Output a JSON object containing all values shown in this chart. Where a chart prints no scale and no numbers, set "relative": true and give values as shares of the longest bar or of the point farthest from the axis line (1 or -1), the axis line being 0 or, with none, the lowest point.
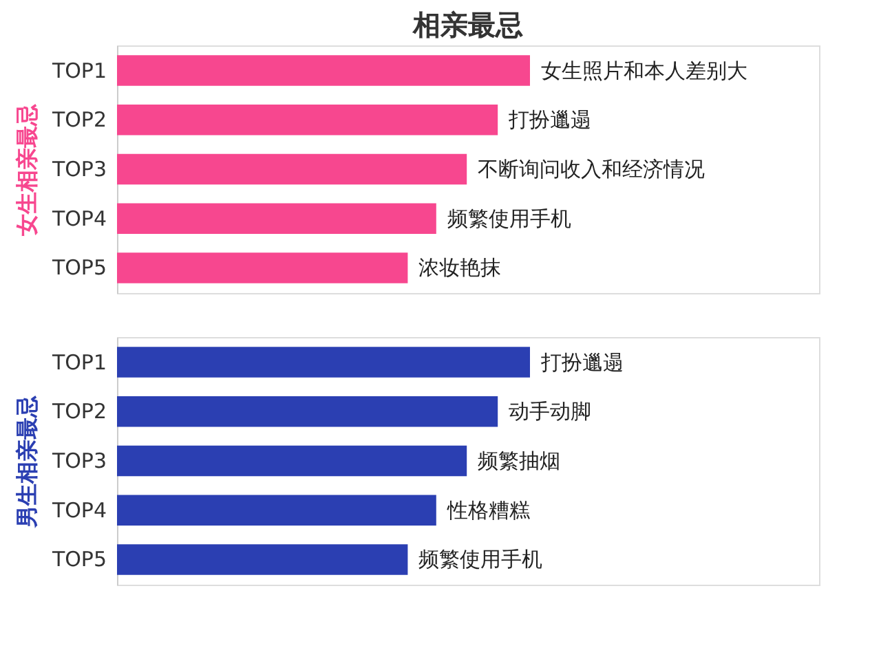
{
  "chart_data": [
    {
      "type": "bar",
      "orientation": "horizontal",
      "relative": true,
      "title": "相亲最忌",
      "ylabel": "女生相亲最忌",
      "categories": [
        "TOP1",
        "TOP2",
        "TOP3",
        "TOP4",
        "TOP5"
      ],
      "series": [
        {
          "color": "#f7478f",
          "values": [
            1,
            0.922,
            0.847,
            0.773,
            0.704
          ]
        }
      ],
      "annotations": [
        {
          "text": "女生照片和本人差别大",
          "x": 1,
          "y": "TOP1"
        },
        {
          "text": "打扮邋遢",
          "x": 0.922,
          "y": "TOP2"
        },
        {
          "text": "不断询问收入和经济情况",
          "x": 0.847,
          "y": "TOP3"
        },
        {
          "text": "频繁使用手机",
          "x": 0.773,
          "y": "TOP4"
        },
        {
          "text": "浓妆艳抹",
          "x": 0.704,
          "y": "TOP5"
        }
      ]
    },
    {
      "type": "bar",
      "orientation": "horizontal",
      "relative": true,
      "ylabel": "男生相亲最忌",
      "categories": [
        "TOP1",
        "TOP2",
        "TOP3",
        "TOP4",
        "TOP5"
      ],
      "series": [
        {
          "color": "#2b3fb2",
          "values": [
            1,
            0.922,
            0.847,
            0.773,
            0.704
          ]
        }
      ],
      "annotations": [
        {
          "text": "打扮邋遢",
          "x": 1,
          "y": "TOP1"
        },
        {
          "text": "动手动脚",
          "x": 0.922,
          "y": "TOP2"
        },
        {
          "text": "频繁抽烟",
          "x": 0.847,
          "y": "TOP3"
        },
        {
          "text": "性格糟糕",
          "x": 0.773,
          "y": "TOP4"
        },
        {
          "text": "频繁使用手机",
          "x": 0.704,
          "y": "TOP5"
        }
      ]
    }
  ]
}
